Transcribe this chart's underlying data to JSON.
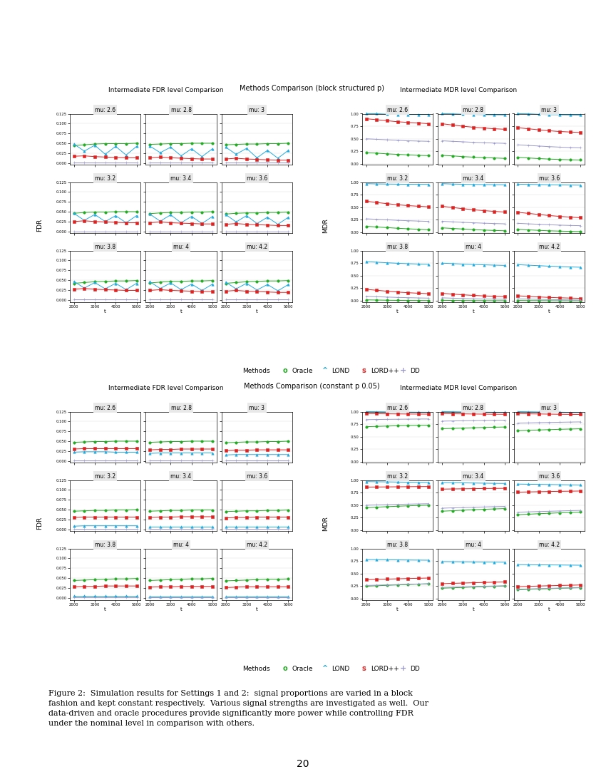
{
  "fig_title1": "Methods Comparison (block structured p)",
  "fig_title2": "Methods Comparison (constant p 0.05)",
  "fdr_title": "Intermediate FDR level Comparison",
  "mdr_title": "Intermediate MDR level Comparison",
  "mu_labels": [
    "mu: 2.6",
    "mu: 2.8",
    "mu: 3",
    "mu: 3.2",
    "mu: 3.4",
    "mu: 3.6",
    "mu: 3.8",
    "mu: 4",
    "mu: 4.2"
  ],
  "t_values": [
    2000,
    2500,
    3000,
    3500,
    4000,
    4500,
    5000
  ],
  "methods": [
    "Oracle",
    "LOND",
    "LORD++",
    "DD"
  ],
  "colors": [
    "#22aa22",
    "#22aadd",
    "#dd2222",
    "#9999cc"
  ],
  "markers": [
    "o",
    "^",
    "s",
    "+"
  ],
  "marker_sizes": [
    2.5,
    2.5,
    2.5,
    3.5
  ],
  "caption": "Figure 2:  Simulation results for Settings 1 and 2:  signal proportions are varied in a block\nfashion and kept constant respectively.  Various signal strengths are investigated as well.  Our\ndata-driven and oracle procedures provide significantly more power while controlling FDR\nunder the nominal level in comparison with others.",
  "page_num": "20",
  "block_fdr": {
    "mu_2.6": [
      [
        0.044,
        0.046,
        0.048,
        0.049,
        0.049,
        0.049,
        0.05
      ],
      [
        0.048,
        0.03,
        0.045,
        0.022,
        0.042,
        0.02,
        0.042
      ],
      [
        0.017,
        0.018,
        0.016,
        0.015,
        0.014,
        0.013,
        0.013
      ],
      [
        0.001,
        0.001,
        0.001,
        0.001,
        0.001,
        0.001,
        0.001
      ]
    ],
    "mu_2.8": [
      [
        0.047,
        0.048,
        0.049,
        0.049,
        0.05,
        0.05,
        0.05
      ],
      [
        0.043,
        0.026,
        0.04,
        0.018,
        0.036,
        0.016,
        0.036
      ],
      [
        0.013,
        0.015,
        0.013,
        0.012,
        0.011,
        0.01,
        0.01
      ],
      [
        0.001,
        0.001,
        0.001,
        0.001,
        0.001,
        0.001,
        0.001
      ]
    ],
    "mu_3": [
      [
        0.046,
        0.047,
        0.048,
        0.048,
        0.049,
        0.049,
        0.05
      ],
      [
        0.04,
        0.022,
        0.037,
        0.013,
        0.032,
        0.012,
        0.032
      ],
      [
        0.01,
        0.012,
        0.01,
        0.009,
        0.008,
        0.007,
        0.007
      ],
      [
        0.001,
        0.001,
        0.001,
        0.001,
        0.001,
        0.001,
        0.001
      ]
    ],
    "mu_3.2": [
      [
        0.046,
        0.048,
        0.049,
        0.049,
        0.05,
        0.05,
        0.05
      ],
      [
        0.046,
        0.028,
        0.043,
        0.025,
        0.04,
        0.022,
        0.04
      ],
      [
        0.025,
        0.027,
        0.025,
        0.024,
        0.023,
        0.022,
        0.022
      ],
      [
        0.0,
        0.0,
        0.0,
        0.0,
        0.0,
        0.0,
        0.0
      ]
    ],
    "mu_3.4": [
      [
        0.045,
        0.047,
        0.048,
        0.048,
        0.049,
        0.049,
        0.05
      ],
      [
        0.044,
        0.026,
        0.042,
        0.022,
        0.038,
        0.02,
        0.038
      ],
      [
        0.022,
        0.024,
        0.022,
        0.021,
        0.02,
        0.019,
        0.019
      ],
      [
        0.0,
        0.0,
        0.0,
        0.0,
        0.0,
        0.0,
        0.0
      ]
    ],
    "mu_3.6": [
      [
        0.044,
        0.046,
        0.047,
        0.047,
        0.048,
        0.048,
        0.049
      ],
      [
        0.043,
        0.024,
        0.04,
        0.02,
        0.036,
        0.018,
        0.036
      ],
      [
        0.018,
        0.02,
        0.018,
        0.017,
        0.016,
        0.015,
        0.015
      ],
      [
        0.0,
        0.0,
        0.0,
        0.0,
        0.0,
        0.0,
        0.0
      ]
    ],
    "mu_3.8": [
      [
        0.042,
        0.044,
        0.046,
        0.047,
        0.048,
        0.048,
        0.049
      ],
      [
        0.047,
        0.03,
        0.044,
        0.028,
        0.042,
        0.026,
        0.042
      ],
      [
        0.027,
        0.029,
        0.027,
        0.026,
        0.025,
        0.024,
        0.024
      ],
      [
        0.001,
        0.001,
        0.001,
        0.001,
        0.001,
        0.001,
        0.001
      ]
    ],
    "mu_4": [
      [
        0.043,
        0.045,
        0.047,
        0.047,
        0.048,
        0.048,
        0.049
      ],
      [
        0.046,
        0.029,
        0.043,
        0.026,
        0.04,
        0.024,
        0.04
      ],
      [
        0.024,
        0.026,
        0.024,
        0.023,
        0.022,
        0.021,
        0.021
      ],
      [
        0.001,
        0.001,
        0.001,
        0.001,
        0.001,
        0.001,
        0.001
      ]
    ],
    "mu_4.2": [
      [
        0.042,
        0.044,
        0.046,
        0.047,
        0.048,
        0.048,
        0.049
      ],
      [
        0.045,
        0.028,
        0.042,
        0.025,
        0.039,
        0.023,
        0.039
      ],
      [
        0.022,
        0.024,
        0.022,
        0.021,
        0.02,
        0.019,
        0.019
      ],
      [
        0.001,
        0.001,
        0.001,
        0.001,
        0.001,
        0.001,
        0.001
      ]
    ]
  },
  "block_mdr": {
    "mu_2.6": [
      [
        0.22,
        0.215,
        0.2,
        0.19,
        0.18,
        0.17,
        0.165
      ],
      [
        1.0,
        1.0,
        0.99,
        0.985,
        0.985,
        0.985,
        0.985
      ],
      [
        0.9,
        0.88,
        0.86,
        0.84,
        0.825,
        0.815,
        0.8
      ],
      [
        0.5,
        0.49,
        0.48,
        0.47,
        0.46,
        0.455,
        0.45
      ]
    ],
    "mu_2.8": [
      [
        0.17,
        0.16,
        0.145,
        0.135,
        0.125,
        0.118,
        0.11
      ],
      [
        1.0,
        0.998,
        0.99,
        0.985,
        0.98,
        0.978,
        0.975
      ],
      [
        0.8,
        0.775,
        0.75,
        0.73,
        0.715,
        0.7,
        0.69
      ],
      [
        0.46,
        0.45,
        0.44,
        0.43,
        0.422,
        0.415,
        0.41
      ]
    ],
    "mu_3": [
      [
        0.13,
        0.118,
        0.106,
        0.096,
        0.088,
        0.082,
        0.078
      ],
      [
        1.0,
        0.998,
        0.988,
        0.98,
        0.978,
        0.975,
        0.972
      ],
      [
        0.72,
        0.7,
        0.678,
        0.66,
        0.645,
        0.635,
        0.625
      ],
      [
        0.38,
        0.368,
        0.356,
        0.344,
        0.334,
        0.326,
        0.32
      ]
    ],
    "mu_3.2": [
      [
        0.12,
        0.108,
        0.095,
        0.082,
        0.071,
        0.061,
        0.052
      ],
      [
        0.97,
        0.965,
        0.962,
        0.96,
        0.958,
        0.957,
        0.956
      ],
      [
        0.62,
        0.595,
        0.572,
        0.55,
        0.533,
        0.52,
        0.508
      ],
      [
        0.27,
        0.26,
        0.25,
        0.24,
        0.232,
        0.225,
        0.218
      ]
    ],
    "mu_3.4": [
      [
        0.09,
        0.078,
        0.066,
        0.055,
        0.046,
        0.038,
        0.032
      ],
      [
        0.97,
        0.962,
        0.958,
        0.955,
        0.952,
        0.95,
        0.948
      ],
      [
        0.52,
        0.495,
        0.472,
        0.45,
        0.433,
        0.418,
        0.405
      ],
      [
        0.22,
        0.21,
        0.2,
        0.191,
        0.183,
        0.176,
        0.17
      ]
    ],
    "mu_3.6": [
      [
        0.06,
        0.05,
        0.04,
        0.031,
        0.025,
        0.02,
        0.016
      ],
      [
        0.96,
        0.956,
        0.952,
        0.948,
        0.945,
        0.942,
        0.94
      ],
      [
        0.4,
        0.378,
        0.356,
        0.335,
        0.318,
        0.304,
        0.292
      ],
      [
        0.18,
        0.17,
        0.161,
        0.152,
        0.144,
        0.138,
        0.133
      ]
    ],
    "mu_3.8": [
      [
        0.02,
        0.016,
        0.012,
        0.009,
        0.007,
        0.006,
        0.005
      ],
      [
        0.78,
        0.77,
        0.758,
        0.748,
        0.74,
        0.733,
        0.728
      ],
      [
        0.23,
        0.21,
        0.192,
        0.175,
        0.162,
        0.151,
        0.142
      ],
      [
        0.09,
        0.082,
        0.075,
        0.068,
        0.063,
        0.058,
        0.054
      ]
    ],
    "mu_4": [
      [
        0.01,
        0.008,
        0.006,
        0.004,
        0.003,
        0.002,
        0.002
      ],
      [
        0.75,
        0.742,
        0.732,
        0.724,
        0.717,
        0.711,
        0.706
      ],
      [
        0.15,
        0.134,
        0.12,
        0.108,
        0.098,
        0.09,
        0.084
      ],
      [
        0.06,
        0.053,
        0.047,
        0.042,
        0.037,
        0.034,
        0.031
      ]
    ],
    "mu_4.2": [
      [
        0.006,
        0.004,
        0.003,
        0.002,
        0.001,
        0.001,
        0.001
      ],
      [
        0.72,
        0.71,
        0.7,
        0.69,
        0.682,
        0.675,
        0.669
      ],
      [
        0.1,
        0.088,
        0.078,
        0.068,
        0.061,
        0.055,
        0.05
      ],
      [
        0.04,
        0.034,
        0.029,
        0.025,
        0.022,
        0.019,
        0.017
      ]
    ]
  },
  "const_fdr": {
    "mu_2.6": [
      [
        0.047,
        0.048,
        0.049,
        0.049,
        0.05,
        0.05,
        0.05
      ],
      [
        0.022,
        0.023,
        0.023,
        0.023,
        0.022,
        0.022,
        0.022
      ],
      [
        0.03,
        0.031,
        0.031,
        0.031,
        0.031,
        0.031,
        0.031
      ],
      [
        0.001,
        0.001,
        0.001,
        0.001,
        0.001,
        0.001,
        0.001
      ]
    ],
    "mu_2.8": [
      [
        0.047,
        0.048,
        0.049,
        0.049,
        0.05,
        0.05,
        0.05
      ],
      [
        0.019,
        0.02,
        0.02,
        0.02,
        0.02,
        0.02,
        0.02
      ],
      [
        0.028,
        0.029,
        0.029,
        0.03,
        0.03,
        0.03,
        0.03
      ],
      [
        0.001,
        0.001,
        0.001,
        0.001,
        0.001,
        0.001,
        0.001
      ]
    ],
    "mu_3": [
      [
        0.046,
        0.047,
        0.048,
        0.048,
        0.049,
        0.049,
        0.05
      ],
      [
        0.015,
        0.016,
        0.016,
        0.016,
        0.016,
        0.016,
        0.016
      ],
      [
        0.026,
        0.027,
        0.027,
        0.028,
        0.028,
        0.028,
        0.028
      ],
      [
        0.001,
        0.001,
        0.001,
        0.001,
        0.001,
        0.001,
        0.001
      ]
    ],
    "mu_3.2": [
      [
        0.046,
        0.047,
        0.048,
        0.048,
        0.049,
        0.049,
        0.05
      ],
      [
        0.008,
        0.009,
        0.009,
        0.009,
        0.009,
        0.009,
        0.009
      ],
      [
        0.03,
        0.031,
        0.031,
        0.031,
        0.031,
        0.031,
        0.031
      ],
      [
        0.001,
        0.001,
        0.001,
        0.001,
        0.001,
        0.001,
        0.001
      ]
    ],
    "mu_3.4": [
      [
        0.046,
        0.047,
        0.048,
        0.048,
        0.049,
        0.049,
        0.049
      ],
      [
        0.007,
        0.007,
        0.007,
        0.007,
        0.007,
        0.007,
        0.007
      ],
      [
        0.03,
        0.031,
        0.031,
        0.032,
        0.032,
        0.032,
        0.032
      ],
      [
        0.001,
        0.001,
        0.001,
        0.001,
        0.001,
        0.001,
        0.001
      ]
    ],
    "mu_3.6": [
      [
        0.045,
        0.046,
        0.047,
        0.047,
        0.048,
        0.048,
        0.049
      ],
      [
        0.006,
        0.006,
        0.006,
        0.006,
        0.006,
        0.006,
        0.006
      ],
      [
        0.029,
        0.03,
        0.03,
        0.031,
        0.031,
        0.031,
        0.031
      ],
      [
        0.001,
        0.001,
        0.001,
        0.001,
        0.001,
        0.001,
        0.001
      ]
    ],
    "mu_3.8": [
      [
        0.044,
        0.045,
        0.046,
        0.047,
        0.048,
        0.048,
        0.049
      ],
      [
        0.005,
        0.005,
        0.005,
        0.005,
        0.005,
        0.005,
        0.005
      ],
      [
        0.028,
        0.029,
        0.029,
        0.03,
        0.03,
        0.03,
        0.03
      ],
      [
        0.001,
        0.001,
        0.001,
        0.001,
        0.001,
        0.001,
        0.001
      ]
    ],
    "mu_4": [
      [
        0.044,
        0.045,
        0.046,
        0.047,
        0.048,
        0.048,
        0.049
      ],
      [
        0.004,
        0.004,
        0.004,
        0.004,
        0.004,
        0.004,
        0.004
      ],
      [
        0.027,
        0.028,
        0.028,
        0.029,
        0.029,
        0.029,
        0.029
      ],
      [
        0.001,
        0.001,
        0.001,
        0.001,
        0.001,
        0.001,
        0.001
      ]
    ],
    "mu_4.2": [
      [
        0.043,
        0.044,
        0.045,
        0.046,
        0.047,
        0.047,
        0.048
      ],
      [
        0.003,
        0.003,
        0.003,
        0.003,
        0.003,
        0.003,
        0.003
      ],
      [
        0.026,
        0.027,
        0.028,
        0.028,
        0.028,
        0.028,
        0.028
      ],
      [
        0.001,
        0.001,
        0.001,
        0.001,
        0.001,
        0.001,
        0.001
      ]
    ]
  },
  "const_mdr": {
    "mu_2.6": [
      [
        0.7,
        0.706,
        0.712,
        0.718,
        0.723,
        0.727,
        0.73
      ],
      [
        1.0,
        0.998,
        0.995,
        0.993,
        0.99,
        0.988,
        0.987
      ],
      [
        0.96,
        0.958,
        0.956,
        0.954,
        0.952,
        0.951,
        0.95
      ],
      [
        0.84,
        0.843,
        0.846,
        0.848,
        0.85,
        0.852,
        0.853
      ]
    ],
    "mu_2.8": [
      [
        0.66,
        0.666,
        0.672,
        0.678,
        0.684,
        0.689,
        0.693
      ],
      [
        1.0,
        0.998,
        0.994,
        0.992,
        0.989,
        0.987,
        0.986
      ],
      [
        0.96,
        0.957,
        0.955,
        0.952,
        0.95,
        0.948,
        0.947
      ],
      [
        0.81,
        0.814,
        0.818,
        0.821,
        0.824,
        0.827,
        0.829
      ]
    ],
    "mu_3": [
      [
        0.62,
        0.627,
        0.634,
        0.641,
        0.648,
        0.653,
        0.658
      ],
      [
        1.0,
        0.997,
        0.993,
        0.99,
        0.988,
        0.985,
        0.984
      ],
      [
        0.96,
        0.956,
        0.953,
        0.95,
        0.947,
        0.945,
        0.944
      ],
      [
        0.77,
        0.775,
        0.78,
        0.784,
        0.788,
        0.792,
        0.795
      ]
    ],
    "mu_3.2": [
      [
        0.45,
        0.46,
        0.47,
        0.479,
        0.487,
        0.494,
        0.5
      ],
      [
        0.97,
        0.967,
        0.964,
        0.961,
        0.958,
        0.956,
        0.954
      ],
      [
        0.86,
        0.862,
        0.864,
        0.866,
        0.868,
        0.87,
        0.871
      ],
      [
        0.5,
        0.506,
        0.511,
        0.516,
        0.521,
        0.525,
        0.529
      ]
    ],
    "mu_3.4": [
      [
        0.38,
        0.39,
        0.4,
        0.409,
        0.418,
        0.425,
        0.432
      ],
      [
        0.95,
        0.947,
        0.944,
        0.941,
        0.938,
        0.935,
        0.933
      ],
      [
        0.82,
        0.823,
        0.826,
        0.829,
        0.832,
        0.834,
        0.836
      ],
      [
        0.44,
        0.447,
        0.453,
        0.459,
        0.465,
        0.47,
        0.475
      ]
    ],
    "mu_3.6": [
      [
        0.31,
        0.32,
        0.33,
        0.339,
        0.348,
        0.356,
        0.363
      ],
      [
        0.92,
        0.917,
        0.914,
        0.911,
        0.908,
        0.905,
        0.903
      ],
      [
        0.76,
        0.764,
        0.768,
        0.772,
        0.776,
        0.779,
        0.782
      ],
      [
        0.36,
        0.367,
        0.373,
        0.379,
        0.385,
        0.391,
        0.396
      ]
    ],
    "mu_3.8": [
      [
        0.25,
        0.259,
        0.268,
        0.276,
        0.284,
        0.291,
        0.298
      ],
      [
        0.78,
        0.778,
        0.776,
        0.774,
        0.772,
        0.77,
        0.768
      ],
      [
        0.38,
        0.386,
        0.392,
        0.397,
        0.403,
        0.408,
        0.413
      ],
      [
        0.265,
        0.271,
        0.277,
        0.283,
        0.289,
        0.294,
        0.299
      ]
    ],
    "mu_4": [
      [
        0.21,
        0.218,
        0.226,
        0.234,
        0.241,
        0.248,
        0.254
      ],
      [
        0.74,
        0.738,
        0.736,
        0.734,
        0.732,
        0.73,
        0.728
      ],
      [
        0.3,
        0.307,
        0.313,
        0.319,
        0.325,
        0.33,
        0.335
      ],
      [
        0.225,
        0.231,
        0.237,
        0.243,
        0.249,
        0.254,
        0.259
      ]
    ],
    "mu_4.2": [
      [
        0.18,
        0.187,
        0.194,
        0.201,
        0.208,
        0.214,
        0.22
      ],
      [
        0.68,
        0.678,
        0.676,
        0.674,
        0.672,
        0.67,
        0.668
      ],
      [
        0.24,
        0.247,
        0.253,
        0.259,
        0.265,
        0.27,
        0.275
      ],
      [
        0.19,
        0.196,
        0.202,
        0.208,
        0.214,
        0.219,
        0.224
      ]
    ]
  }
}
